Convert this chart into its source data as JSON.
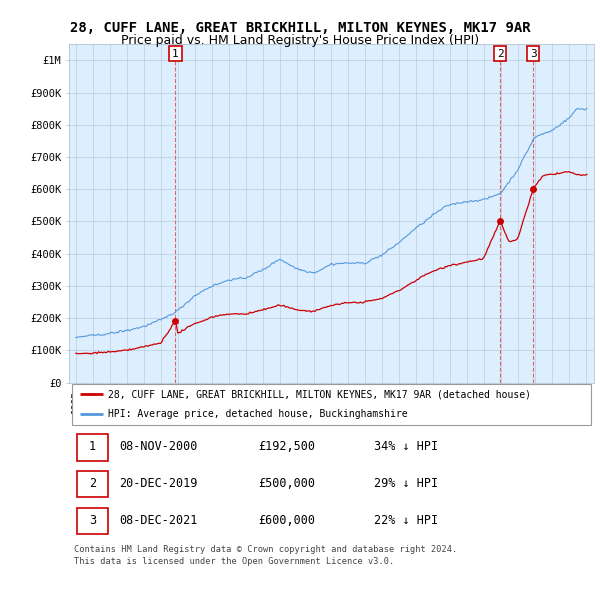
{
  "title": "28, CUFF LANE, GREAT BRICKHILL, MILTON KEYNES, MK17 9AR",
  "subtitle": "Price paid vs. HM Land Registry's House Price Index (HPI)",
  "ylim": [
    0,
    1050000
  ],
  "yticks": [
    0,
    100000,
    200000,
    300000,
    400000,
    500000,
    600000,
    700000,
    800000,
    900000,
    1000000
  ],
  "ytick_labels": [
    "£0",
    "£100K",
    "£200K",
    "£300K",
    "£400K",
    "£500K",
    "£600K",
    "£700K",
    "£800K",
    "£900K",
    "£1M"
  ],
  "hpi_color": "#5599dd",
  "sale_color": "#cc0000",
  "vline_color": "#dd6666",
  "chart_bg": "#ddeeff",
  "background_color": "#ffffff",
  "grid_color": "#bbccdd",
  "legend_label_sale": "28, CUFF LANE, GREAT BRICKHILL, MILTON KEYNES, MK17 9AR (detached house)",
  "legend_label_hpi": "HPI: Average price, detached house, Buckinghamshire",
  "sales": [
    {
      "date_num": 2000.86,
      "price": 192500,
      "label": "1"
    },
    {
      "date_num": 2019.97,
      "price": 500000,
      "label": "2"
    },
    {
      "date_num": 2021.93,
      "price": 600000,
      "label": "3"
    }
  ],
  "table_rows": [
    {
      "num": "1",
      "date": "08-NOV-2000",
      "price": "£192,500",
      "hpi": "34% ↓ HPI"
    },
    {
      "num": "2",
      "date": "20-DEC-2019",
      "price": "£500,000",
      "hpi": "29% ↓ HPI"
    },
    {
      "num": "3",
      "date": "08-DEC-2021",
      "price": "£600,000",
      "hpi": "22% ↓ HPI"
    }
  ],
  "footer": "Contains HM Land Registry data © Crown copyright and database right 2024.\nThis data is licensed under the Open Government Licence v3.0.",
  "title_fontsize": 10,
  "subtitle_fontsize": 9,
  "hpi_key_years": [
    1995,
    1996,
    1997,
    1998,
    1999,
    2000,
    2001,
    2002,
    2003,
    2004,
    2005,
    2006,
    2007,
    2008,
    2009,
    2010,
    2011,
    2012,
    2013,
    2014,
    2015,
    2016,
    2017,
    2018,
    2019,
    2020,
    2021,
    2022,
    2023,
    2024,
    2024.5
  ],
  "hpi_key_vals": [
    140000,
    145000,
    155000,
    165000,
    180000,
    200000,
    228000,
    275000,
    305000,
    325000,
    330000,
    355000,
    390000,
    360000,
    345000,
    370000,
    375000,
    375000,
    395000,
    435000,
    480000,
    520000,
    555000,
    565000,
    570000,
    590000,
    660000,
    760000,
    780000,
    820000,
    850000
  ],
  "red_key_years": [
    1995,
    1996,
    1997,
    1998,
    1999,
    2000,
    2000.86,
    2001,
    2002,
    2003,
    2004,
    2005,
    2006,
    2007,
    2008,
    2009,
    2010,
    2011,
    2012,
    2013,
    2014,
    2015,
    2016,
    2017,
    2018,
    2019,
    2019.97,
    2020.5,
    2021,
    2021.93,
    2022.5,
    2023,
    2024,
    2024.5
  ],
  "red_key_vals": [
    90000,
    92000,
    97000,
    103000,
    112000,
    125000,
    192500,
    155000,
    185000,
    205000,
    215000,
    215000,
    228000,
    242000,
    228000,
    220000,
    238000,
    245000,
    248000,
    260000,
    285000,
    315000,
    345000,
    365000,
    375000,
    385000,
    500000,
    435000,
    445000,
    600000,
    640000,
    645000,
    655000,
    645000
  ]
}
